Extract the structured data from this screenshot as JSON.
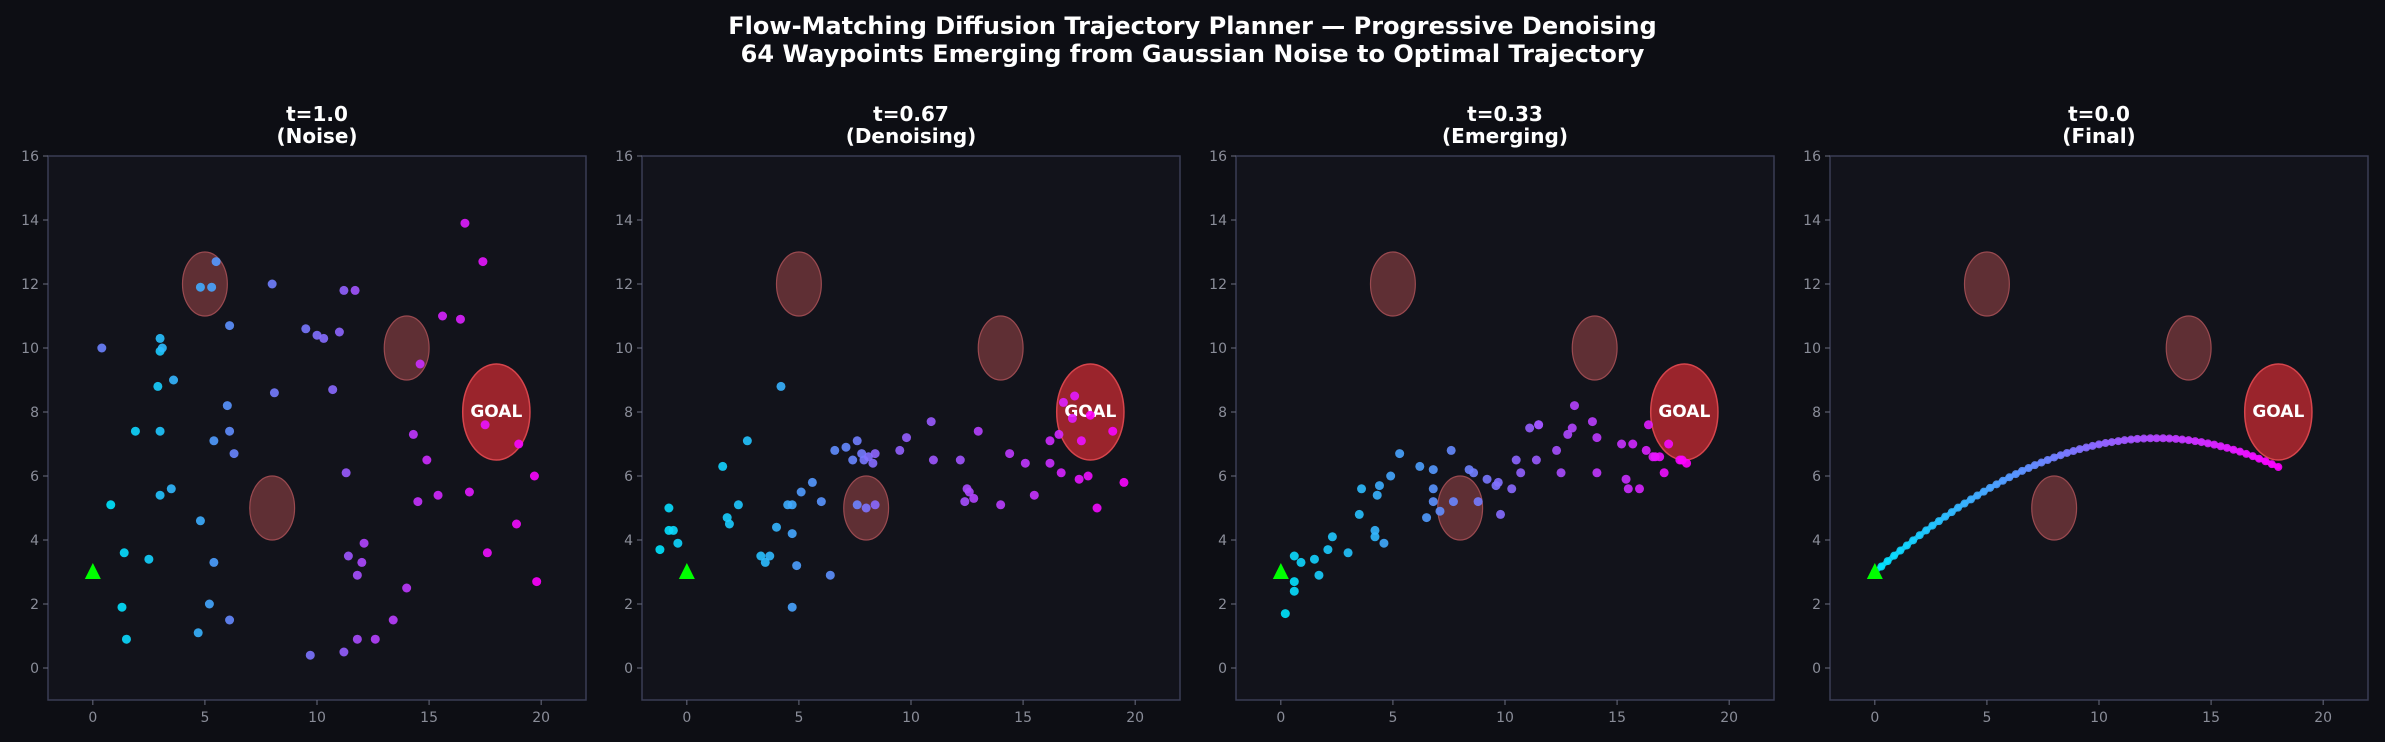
{
  "figure": {
    "title_line1": "Flow-Matching Diffusion Trajectory Planner — Progressive Denoising",
    "title_line2": "64 Waypoints Emerging from Gaussian Noise to Optimal Trajectory"
  },
  "colors": {
    "background": "#0d0e14",
    "axes_face": "#12131b",
    "axes_border": "#3a3d55",
    "start_marker": "#00ff00",
    "goal_fill": "#b3282f",
    "obstacle_fill": "#7a3a3e",
    "waypoint_start": "#00e5ff",
    "waypoint_end": "#ff00ff"
  },
  "chart_data": [
    {
      "type": "scatter",
      "title_line1": "t=1.0",
      "title_line2": "(Noise)",
      "xlim": [
        -2,
        22
      ],
      "ylim": [
        -1,
        16
      ],
      "xticks": [
        0,
        5,
        10,
        15,
        20
      ],
      "yticks": [
        0,
        2,
        4,
        6,
        8,
        10,
        12,
        14,
        16
      ],
      "start": [
        0,
        3
      ],
      "goal": {
        "center": [
          18,
          8
        ],
        "rx": 1.5,
        "ry": 1.5,
        "label": "GOAL"
      },
      "obstacles": [
        {
          "center": [
            5,
            12
          ],
          "rx": 1.0,
          "ry": 1.0
        },
        {
          "center": [
            14,
            10
          ],
          "rx": 1.0,
          "ry": 1.0
        },
        {
          "center": [
            8,
            5
          ],
          "rx": 1.0,
          "ry": 1.0
        }
      ],
      "connected": false,
      "waypoints": [
        [
          0.8,
          5.1
        ],
        [
          1.3,
          1.9
        ],
        [
          1.4,
          3.6
        ],
        [
          1.5,
          0.9
        ],
        [
          1.9,
          7.4
        ],
        [
          2.5,
          3.4
        ],
        [
          2.9,
          8.8
        ],
        [
          3.0,
          9.9
        ],
        [
          3.0,
          7.4
        ],
        [
          3.0,
          5.4
        ],
        [
          3.0,
          10.3
        ],
        [
          3.1,
          10.0
        ],
        [
          3.5,
          5.6
        ],
        [
          3.6,
          9.0
        ],
        [
          4.7,
          1.1
        ],
        [
          4.8,
          4.6
        ],
        [
          4.8,
          11.9
        ],
        [
          5.2,
          2.0
        ],
        [
          5.3,
          11.9
        ],
        [
          5.4,
          3.3
        ],
        [
          5.4,
          7.1
        ],
        [
          5.5,
          12.7
        ],
        [
          6.0,
          8.2
        ],
        [
          6.1,
          10.7
        ],
        [
          6.1,
          7.4
        ],
        [
          6.1,
          1.5
        ],
        [
          6.3,
          6.7
        ],
        [
          0.4,
          10.0
        ],
        [
          8.0,
          12.0
        ],
        [
          8.1,
          8.6
        ],
        [
          9.5,
          10.6
        ],
        [
          9.7,
          0.4
        ],
        [
          10.0,
          10.4
        ],
        [
          10.3,
          10.3
        ],
        [
          10.7,
          8.7
        ],
        [
          11.0,
          10.5
        ],
        [
          11.2,
          11.8
        ],
        [
          11.2,
          0.5
        ],
        [
          11.3,
          6.1
        ],
        [
          11.4,
          3.5
        ],
        [
          11.7,
          11.8
        ],
        [
          11.8,
          2.9
        ],
        [
          11.8,
          0.9
        ],
        [
          12.0,
          3.3
        ],
        [
          12.1,
          3.9
        ],
        [
          12.6,
          0.9
        ],
        [
          13.4,
          1.5
        ],
        [
          14.0,
          2.5
        ],
        [
          14.3,
          7.3
        ],
        [
          14.5,
          5.2
        ],
        [
          14.6,
          9.5
        ],
        [
          14.9,
          6.5
        ],
        [
          15.4,
          5.4
        ],
        [
          15.6,
          11.0
        ],
        [
          16.4,
          10.9
        ],
        [
          16.6,
          13.9
        ],
        [
          16.8,
          5.5
        ],
        [
          17.4,
          12.7
        ],
        [
          17.5,
          7.6
        ],
        [
          17.6,
          3.6
        ],
        [
          18.9,
          4.5
        ],
        [
          19.0,
          7.0
        ],
        [
          19.7,
          6.0
        ],
        [
          19.8,
          2.7
        ]
      ]
    },
    {
      "type": "scatter",
      "title_line1": "t=0.67",
      "title_line2": "(Denoising)",
      "xlim": [
        -2,
        22
      ],
      "ylim": [
        -1,
        16
      ],
      "xticks": [
        0,
        5,
        10,
        15,
        20
      ],
      "yticks": [
        0,
        2,
        4,
        6,
        8,
        10,
        12,
        14,
        16
      ],
      "start": [
        0,
        3
      ],
      "goal": {
        "center": [
          18,
          8
        ],
        "rx": 1.5,
        "ry": 1.5,
        "label": "GOAL"
      },
      "obstacles": [
        {
          "center": [
            5,
            12
          ],
          "rx": 1.0,
          "ry": 1.0
        },
        {
          "center": [
            14,
            10
          ],
          "rx": 1.0,
          "ry": 1.0
        },
        {
          "center": [
            8,
            5
          ],
          "rx": 1.0,
          "ry": 1.0
        }
      ],
      "connected": false,
      "waypoints": [
        [
          -1.2,
          3.7
        ],
        [
          -0.8,
          4.3
        ],
        [
          -0.8,
          5.0
        ],
        [
          -0.6,
          4.3
        ],
        [
          -0.4,
          3.9
        ],
        [
          1.6,
          6.3
        ],
        [
          1.8,
          4.7
        ],
        [
          1.9,
          4.5
        ],
        [
          2.3,
          5.1
        ],
        [
          2.7,
          7.1
        ],
        [
          3.3,
          3.5
        ],
        [
          3.5,
          3.3
        ],
        [
          3.7,
          3.5
        ],
        [
          4.0,
          4.4
        ],
        [
          4.2,
          8.8
        ],
        [
          4.5,
          5.1
        ],
        [
          4.7,
          5.1
        ],
        [
          4.7,
          4.2
        ],
        [
          4.7,
          1.9
        ],
        [
          4.9,
          3.2
        ],
        [
          5.1,
          5.5
        ],
        [
          5.6,
          5.8
        ],
        [
          6.0,
          5.2
        ],
        [
          6.4,
          2.9
        ],
        [
          6.6,
          6.8
        ],
        [
          7.1,
          6.9
        ],
        [
          7.4,
          6.5
        ],
        [
          7.6,
          5.1
        ],
        [
          7.6,
          7.1
        ],
        [
          7.8,
          6.7
        ],
        [
          7.9,
          6.5
        ],
        [
          8.0,
          5.0
        ],
        [
          8.1,
          6.6
        ],
        [
          8.3,
          6.4
        ],
        [
          8.4,
          5.1
        ],
        [
          8.4,
          6.7
        ],
        [
          9.5,
          6.8
        ],
        [
          9.8,
          7.2
        ],
        [
          10.9,
          7.7
        ],
        [
          11.0,
          6.5
        ],
        [
          12.2,
          6.5
        ],
        [
          12.4,
          5.2
        ],
        [
          12.5,
          5.6
        ],
        [
          12.6,
          5.5
        ],
        [
          12.8,
          5.3
        ],
        [
          13.0,
          7.4
        ],
        [
          14.0,
          5.1
        ],
        [
          14.4,
          6.7
        ],
        [
          15.1,
          6.4
        ],
        [
          15.5,
          5.4
        ],
        [
          16.2,
          6.4
        ],
        [
          16.2,
          7.1
        ],
        [
          16.6,
          7.3
        ],
        [
          16.7,
          6.1
        ],
        [
          16.8,
          8.3
        ],
        [
          17.2,
          7.8
        ],
        [
          17.3,
          8.5
        ],
        [
          17.5,
          5.9
        ],
        [
          17.6,
          7.1
        ],
        [
          17.9,
          6.0
        ],
        [
          18.3,
          5.0
        ],
        [
          19.0,
          7.4
        ],
        [
          19.5,
          5.8
        ],
        [
          18.0,
          7.9
        ]
      ]
    },
    {
      "type": "scatter",
      "title_line1": "t=0.33",
      "title_line2": "(Emerging)",
      "xlim": [
        -2,
        22
      ],
      "ylim": [
        -1,
        16
      ],
      "xticks": [
        0,
        5,
        10,
        15,
        20
      ],
      "yticks": [
        0,
        2,
        4,
        6,
        8,
        10,
        12,
        14,
        16
      ],
      "start": [
        0,
        3
      ],
      "goal": {
        "center": [
          18,
          8
        ],
        "rx": 1.5,
        "ry": 1.5,
        "label": "GOAL"
      },
      "obstacles": [
        {
          "center": [
            5,
            12
          ],
          "rx": 1.0,
          "ry": 1.0
        },
        {
          "center": [
            14,
            10
          ],
          "rx": 1.0,
          "ry": 1.0
        },
        {
          "center": [
            8,
            5
          ],
          "rx": 1.0,
          "ry": 1.0
        }
      ],
      "connected": false,
      "waypoints": [
        [
          0.2,
          1.7
        ],
        [
          0.6,
          2.7
        ],
        [
          0.6,
          2.4
        ],
        [
          0.6,
          3.5
        ],
        [
          0.9,
          3.3
        ],
        [
          1.5,
          3.4
        ],
        [
          1.7,
          2.9
        ],
        [
          2.1,
          3.7
        ],
        [
          2.3,
          4.1
        ],
        [
          3.0,
          3.6
        ],
        [
          3.5,
          4.8
        ],
        [
          3.6,
          5.6
        ],
        [
          4.2,
          4.1
        ],
        [
          4.2,
          4.3
        ],
        [
          4.3,
          5.4
        ],
        [
          4.4,
          5.7
        ],
        [
          4.6,
          3.9
        ],
        [
          4.9,
          6.0
        ],
        [
          5.3,
          6.7
        ],
        [
          6.2,
          6.3
        ],
        [
          6.5,
          4.7
        ],
        [
          6.8,
          6.2
        ],
        [
          6.8,
          5.6
        ],
        [
          6.8,
          5.2
        ],
        [
          7.1,
          4.9
        ],
        [
          7.6,
          6.8
        ],
        [
          7.7,
          5.2
        ],
        [
          8.4,
          6.2
        ],
        [
          8.6,
          6.1
        ],
        [
          8.8,
          5.2
        ],
        [
          9.2,
          5.9
        ],
        [
          9.6,
          5.7
        ],
        [
          9.7,
          5.8
        ],
        [
          9.8,
          4.8
        ],
        [
          10.3,
          5.6
        ],
        [
          10.5,
          6.5
        ],
        [
          10.7,
          6.1
        ],
        [
          11.1,
          7.5
        ],
        [
          11.4,
          6.5
        ],
        [
          11.5,
          7.6
        ],
        [
          11.5,
          7.6
        ],
        [
          12.3,
          6.8
        ],
        [
          12.5,
          6.1
        ],
        [
          12.8,
          7.3
        ],
        [
          13.0,
          7.5
        ],
        [
          13.1,
          8.2
        ],
        [
          13.9,
          7.7
        ],
        [
          14.1,
          7.2
        ],
        [
          14.1,
          6.1
        ],
        [
          15.2,
          7.0
        ],
        [
          15.4,
          5.9
        ],
        [
          15.5,
          5.6
        ],
        [
          15.7,
          7.0
        ],
        [
          16.0,
          5.6
        ],
        [
          16.3,
          6.8
        ],
        [
          16.4,
          7.6
        ],
        [
          16.6,
          6.6
        ],
        [
          16.7,
          6.6
        ],
        [
          16.9,
          6.6
        ],
        [
          17.1,
          6.1
        ],
        [
          17.3,
          7.0
        ],
        [
          17.8,
          6.5
        ],
        [
          17.9,
          6.5
        ],
        [
          18.1,
          6.4
        ]
      ]
    },
    {
      "type": "line",
      "title_line1": "t=0.0",
      "title_line2": "(Final)",
      "xlim": [
        -2,
        22
      ],
      "ylim": [
        -1,
        16
      ],
      "xticks": [
        0,
        5,
        10,
        15,
        20
      ],
      "yticks": [
        0,
        2,
        4,
        6,
        8,
        10,
        12,
        14,
        16
      ],
      "start": [
        0,
        3
      ],
      "goal": {
        "center": [
          18,
          8
        ],
        "rx": 1.5,
        "ry": 1.5,
        "label": "GOAL"
      },
      "obstacles": [
        {
          "center": [
            5,
            12
          ],
          "rx": 1.0,
          "ry": 1.0
        },
        {
          "center": [
            14,
            10
          ],
          "rx": 1.0,
          "ry": 1.0
        },
        {
          "center": [
            8,
            5
          ],
          "rx": 1.0,
          "ry": 1.0
        }
      ],
      "connected": true,
      "waypoints": [
        [
          0.0,
          3.0
        ],
        [
          0.29,
          3.17
        ],
        [
          0.57,
          3.34
        ],
        [
          0.86,
          3.51
        ],
        [
          1.14,
          3.67
        ],
        [
          1.43,
          3.83
        ],
        [
          1.71,
          3.99
        ],
        [
          2.0,
          4.15
        ],
        [
          2.29,
          4.3
        ],
        [
          2.57,
          4.45
        ],
        [
          2.86,
          4.59
        ],
        [
          3.14,
          4.73
        ],
        [
          3.43,
          4.87
        ],
        [
          3.71,
          5.01
        ],
        [
          4.0,
          5.14
        ],
        [
          4.29,
          5.27
        ],
        [
          4.57,
          5.39
        ],
        [
          4.86,
          5.51
        ],
        [
          5.14,
          5.63
        ],
        [
          5.43,
          5.74
        ],
        [
          5.71,
          5.85
        ],
        [
          6.0,
          5.96
        ],
        [
          6.29,
          6.06
        ],
        [
          6.57,
          6.16
        ],
        [
          6.86,
          6.25
        ],
        [
          7.14,
          6.34
        ],
        [
          7.43,
          6.42
        ],
        [
          7.71,
          6.5
        ],
        [
          8.0,
          6.58
        ],
        [
          8.29,
          6.65
        ],
        [
          8.57,
          6.72
        ],
        [
          8.86,
          6.78
        ],
        [
          9.14,
          6.84
        ],
        [
          9.43,
          6.89
        ],
        [
          9.71,
          6.94
        ],
        [
          10.0,
          6.99
        ],
        [
          10.29,
          7.03
        ],
        [
          10.57,
          7.06
        ],
        [
          10.86,
          7.09
        ],
        [
          11.14,
          7.12
        ],
        [
          11.43,
          7.14
        ],
        [
          11.71,
          7.16
        ],
        [
          12.0,
          7.17
        ],
        [
          12.29,
          7.18
        ],
        [
          12.57,
          7.18
        ],
        [
          12.86,
          7.18
        ],
        [
          13.14,
          7.17
        ],
        [
          13.43,
          7.16
        ],
        [
          13.71,
          7.14
        ],
        [
          14.0,
          7.12
        ],
        [
          14.29,
          7.09
        ],
        [
          14.57,
          7.06
        ],
        [
          14.86,
          7.02
        ],
        [
          15.14,
          6.98
        ],
        [
          15.43,
          6.93
        ],
        [
          15.71,
          6.88
        ],
        [
          16.0,
          6.82
        ],
        [
          16.29,
          6.76
        ],
        [
          16.57,
          6.69
        ],
        [
          16.86,
          6.62
        ],
        [
          17.14,
          6.54
        ],
        [
          17.43,
          6.46
        ],
        [
          17.71,
          6.37
        ],
        [
          18.0,
          6.28
        ]
      ]
    }
  ]
}
